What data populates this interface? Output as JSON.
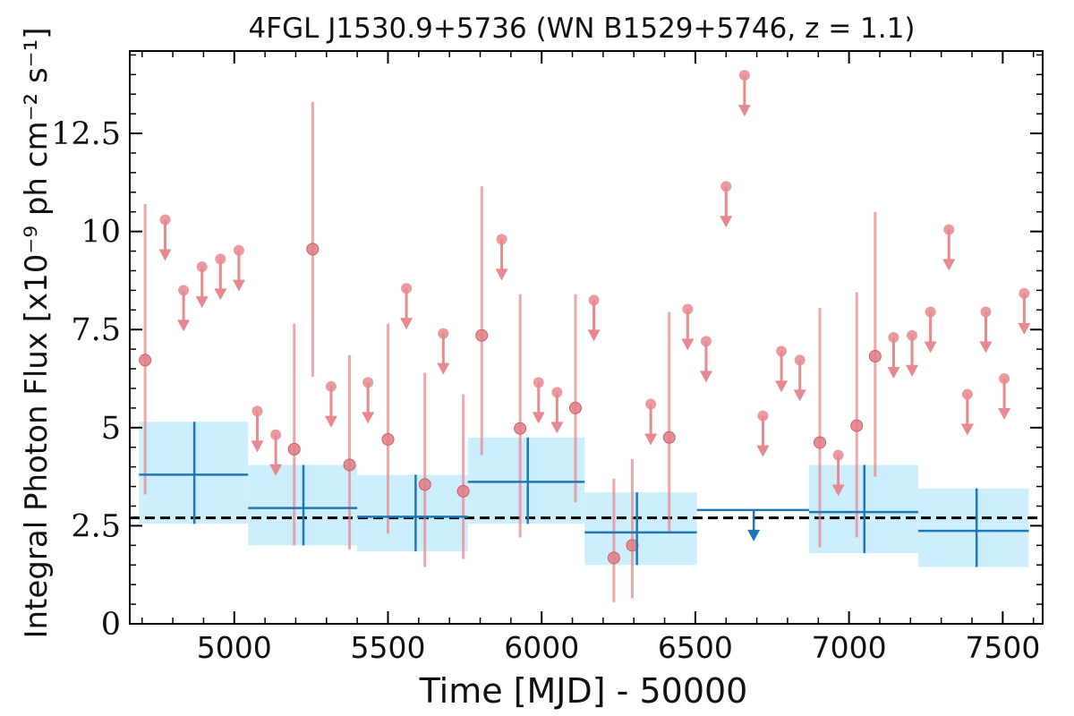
{
  "chart_data": {
    "type": "scatter",
    "title": "4FGL J1530.9+5736 (WN B1529+5746, z = 1.1)",
    "xlabel": "Time [MJD] - 50000",
    "ylabel": "Integral Photon Flux [x10⁻⁹ ph cm⁻² s⁻¹]",
    "xlim": [
      4660,
      7630
    ],
    "ylim": [
      0,
      14.6
    ],
    "xticks": [
      "5000",
      "5500",
      "6000",
      "6500",
      "7000",
      "7500"
    ],
    "yticks": [
      "0",
      "2.5",
      "5",
      "7.5",
      "10",
      "12.5"
    ],
    "xtick_values": [
      5000,
      5500,
      6000,
      6500,
      7000,
      7500
    ],
    "ytick_values": [
      0,
      2.5,
      5,
      7.5,
      10,
      12.5
    ],
    "average_flux": 2.7,
    "colors": {
      "short_bins": "#e8898f",
      "long_bins": "#1f77b4",
      "long_bins_band": "#cdeefc",
      "average_line": "#000000"
    },
    "series": [
      {
        "kind": "short-bin-detections",
        "points": [
          {
            "x": 4710,
            "y": 6.72,
            "lo": 3.3,
            "hi": 10.7
          },
          {
            "x": 5195,
            "y": 4.45,
            "lo": 2.0,
            "hi": 7.65
          },
          {
            "x": 5255,
            "y": 9.55,
            "lo": 6.3,
            "hi": 13.3
          },
          {
            "x": 5375,
            "y": 4.05,
            "lo": 1.9,
            "hi": 6.85
          },
          {
            "x": 5500,
            "y": 4.7,
            "lo": 2.3,
            "hi": 7.65
          },
          {
            "x": 5620,
            "y": 3.55,
            "lo": 1.45,
            "hi": 6.4
          },
          {
            "x": 5745,
            "y": 3.38,
            "lo": 1.65,
            "hi": 5.85
          },
          {
            "x": 5805,
            "y": 7.35,
            "lo": 4.3,
            "hi": 11.15
          },
          {
            "x": 5930,
            "y": 4.98,
            "lo": 2.2,
            "hi": 8.4
          },
          {
            "x": 6110,
            "y": 5.5,
            "lo": 3.1,
            "hi": 8.4
          },
          {
            "x": 6235,
            "y": 1.68,
            "lo": 0.55,
            "hi": 3.7
          },
          {
            "x": 6295,
            "y": 2.0,
            "lo": 0.65,
            "hi": 4.2
          },
          {
            "x": 6415,
            "y": 4.75,
            "lo": 2.3,
            "hi": 7.95
          },
          {
            "x": 6905,
            "y": 4.62,
            "lo": 1.95,
            "hi": 8.05
          },
          {
            "x": 7025,
            "y": 5.05,
            "lo": 2.2,
            "hi": 8.45
          },
          {
            "x": 7085,
            "y": 6.82,
            "lo": 3.75,
            "hi": 10.5
          }
        ]
      },
      {
        "kind": "short-bin-upper-limits",
        "points": [
          {
            "x": 4775,
            "y": 10.3
          },
          {
            "x": 4835,
            "y": 8.5
          },
          {
            "x": 4895,
            "y": 9.1
          },
          {
            "x": 4955,
            "y": 9.3
          },
          {
            "x": 5015,
            "y": 9.52
          },
          {
            "x": 5075,
            "y": 5.42
          },
          {
            "x": 5135,
            "y": 4.82
          },
          {
            "x": 5315,
            "y": 6.05
          },
          {
            "x": 5435,
            "y": 6.15
          },
          {
            "x": 5560,
            "y": 8.55
          },
          {
            "x": 5680,
            "y": 7.4
          },
          {
            "x": 5870,
            "y": 9.8
          },
          {
            "x": 5990,
            "y": 6.15
          },
          {
            "x": 6050,
            "y": 5.9
          },
          {
            "x": 6170,
            "y": 8.25
          },
          {
            "x": 6355,
            "y": 5.6
          },
          {
            "x": 6475,
            "y": 8.02
          },
          {
            "x": 6535,
            "y": 7.2
          },
          {
            "x": 6600,
            "y": 11.15
          },
          {
            "x": 6660,
            "y": 13.98
          },
          {
            "x": 6720,
            "y": 5.3
          },
          {
            "x": 6780,
            "y": 6.95
          },
          {
            "x": 6840,
            "y": 6.72
          },
          {
            "x": 6965,
            "y": 4.3
          },
          {
            "x": 7145,
            "y": 7.3
          },
          {
            "x": 7205,
            "y": 7.35
          },
          {
            "x": 7265,
            "y": 7.95
          },
          {
            "x": 7325,
            "y": 10.05
          },
          {
            "x": 7385,
            "y": 5.85
          },
          {
            "x": 7445,
            "y": 7.95
          },
          {
            "x": 7505,
            "y": 6.25
          },
          {
            "x": 7570,
            "y": 8.42
          }
        ]
      },
      {
        "kind": "long-bin-detections",
        "points": [
          {
            "x0": 4690,
            "x1": 5045,
            "x": 4870,
            "y": 3.8,
            "lo": 2.55,
            "hi": 5.15
          },
          {
            "x0": 5045,
            "x1": 5400,
            "x": 5225,
            "y": 2.95,
            "lo": 2.0,
            "hi": 4.05
          },
          {
            "x0": 5400,
            "x1": 5760,
            "x": 5590,
            "y": 2.73,
            "lo": 1.85,
            "hi": 3.8
          },
          {
            "x0": 5760,
            "x1": 6140,
            "x": 5955,
            "y": 3.62,
            "lo": 2.55,
            "hi": 4.75
          },
          {
            "x0": 6140,
            "x1": 6505,
            "x": 6310,
            "y": 2.33,
            "lo": 1.5,
            "hi": 3.35
          },
          {
            "x0": 6870,
            "x1": 7225,
            "x": 7050,
            "y": 2.85,
            "lo": 1.8,
            "hi": 4.05
          },
          {
            "x0": 7225,
            "x1": 7585,
            "x": 7415,
            "y": 2.37,
            "lo": 1.45,
            "hi": 3.45
          }
        ]
      },
      {
        "kind": "long-bin-upper-limits",
        "points": [
          {
            "x0": 6505,
            "x1": 6870,
            "x": 6690,
            "y": 2.9
          }
        ]
      }
    ]
  }
}
